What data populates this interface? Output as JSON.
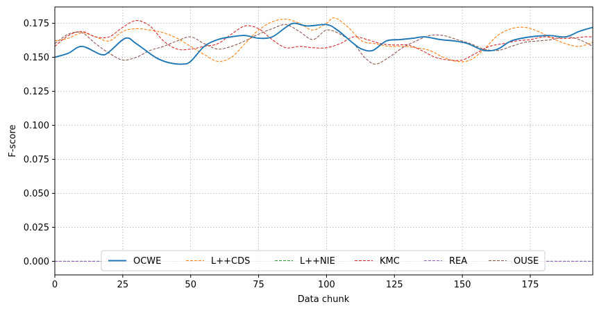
{
  "chart_data": {
    "type": "line",
    "title": "",
    "xlabel": "Data chunk",
    "ylabel": "F-score",
    "xlim": [
      0,
      198
    ],
    "ylim": [
      -0.01,
      0.187
    ],
    "xticks": [
      0,
      25,
      50,
      75,
      100,
      125,
      150,
      175
    ],
    "yticks": [
      0.0,
      0.025,
      0.05,
      0.075,
      0.1,
      0.125,
      0.15,
      0.175
    ],
    "ytick_labels": [
      "0.000",
      "0.025",
      "0.050",
      "0.075",
      "0.100",
      "0.125",
      "0.150",
      "0.175"
    ],
    "grid": true,
    "legend_position": "lower center",
    "series": [
      {
        "name": "OCWE",
        "color": "#1f77b4",
        "style": "solid",
        "x": [
          0,
          5,
          10,
          17,
          20,
          26,
          30,
          37,
          42,
          47,
          50,
          55,
          60,
          65,
          70,
          75,
          80,
          85,
          88,
          93,
          100,
          104,
          110,
          113,
          117,
          122,
          127,
          132,
          136,
          142,
          147,
          152,
          158,
          163,
          168,
          175,
          182,
          188,
          193,
          198
        ],
        "y": [
          0.15,
          0.153,
          0.158,
          0.152,
          0.154,
          0.164,
          0.16,
          0.15,
          0.146,
          0.145,
          0.147,
          0.158,
          0.163,
          0.165,
          0.166,
          0.164,
          0.165,
          0.172,
          0.175,
          0.173,
          0.174,
          0.17,
          0.16,
          0.156,
          0.155,
          0.162,
          0.163,
          0.164,
          0.165,
          0.163,
          0.162,
          0.16,
          0.155,
          0.156,
          0.162,
          0.165,
          0.166,
          0.165,
          0.169,
          0.172
        ]
      },
      {
        "name": "L++CDS",
        "color": "#ff7f0e",
        "style": "dashed",
        "x": [
          0,
          5,
          10,
          15,
          20,
          25,
          30,
          35,
          40,
          45,
          50,
          55,
          60,
          65,
          70,
          75,
          80,
          85,
          90,
          95,
          100,
          103,
          108,
          113,
          118,
          123,
          128,
          133,
          138,
          143,
          148,
          153,
          158,
          163,
          168,
          173,
          178,
          183,
          188,
          193,
          198
        ],
        "y": [
          0.162,
          0.164,
          0.168,
          0.165,
          0.162,
          0.169,
          0.171,
          0.17,
          0.168,
          0.164,
          0.158,
          0.152,
          0.147,
          0.15,
          0.16,
          0.17,
          0.176,
          0.178,
          0.175,
          0.17,
          0.175,
          0.179,
          0.172,
          0.162,
          0.16,
          0.158,
          0.158,
          0.157,
          0.155,
          0.15,
          0.147,
          0.148,
          0.156,
          0.166,
          0.171,
          0.172,
          0.169,
          0.164,
          0.16,
          0.158,
          0.161
        ]
      },
      {
        "name": "L++NIE",
        "color": "#2ca02c",
        "style": "dashed",
        "x": [
          0,
          50,
          100,
          150,
          198
        ],
        "y": [
          0.0,
          0.0,
          0.0,
          0.0,
          0.0
        ]
      },
      {
        "name": "KMC",
        "color": "#d62728",
        "style": "dashed",
        "x": [
          0,
          5,
          10,
          15,
          20,
          25,
          30,
          35,
          40,
          45,
          50,
          55,
          60,
          65,
          70,
          75,
          80,
          85,
          90,
          95,
          100,
          105,
          110,
          115,
          120,
          125,
          130,
          135,
          140,
          145,
          150,
          155,
          160,
          165,
          170,
          175,
          180,
          185,
          190,
          195,
          198
        ],
        "y": [
          0.158,
          0.166,
          0.169,
          0.165,
          0.165,
          0.172,
          0.177,
          0.173,
          0.162,
          0.156,
          0.156,
          0.158,
          0.16,
          0.167,
          0.173,
          0.171,
          0.163,
          0.157,
          0.158,
          0.157,
          0.157,
          0.16,
          0.165,
          0.163,
          0.16,
          0.159,
          0.159,
          0.155,
          0.15,
          0.148,
          0.148,
          0.153,
          0.158,
          0.16,
          0.162,
          0.163,
          0.165,
          0.164,
          0.164,
          0.165,
          0.165
        ]
      },
      {
        "name": "REA",
        "color": "#9467bd",
        "style": "dashed",
        "x": [
          0,
          50,
          100,
          150,
          198
        ],
        "y": [
          0.0,
          0.0,
          0.0,
          0.0,
          0.0
        ]
      },
      {
        "name": "OUSE",
        "color": "#8c564b",
        "style": "dashed",
        "x": [
          0,
          5,
          10,
          15,
          20,
          25,
          30,
          35,
          40,
          45,
          50,
          55,
          60,
          65,
          70,
          75,
          80,
          85,
          90,
          95,
          100,
          105,
          110,
          114,
          118,
          123,
          128,
          133,
          138,
          143,
          148,
          153,
          158,
          163,
          168,
          173,
          178,
          183,
          188,
          193,
          198
        ],
        "y": [
          0.16,
          0.167,
          0.168,
          0.16,
          0.153,
          0.148,
          0.15,
          0.155,
          0.158,
          0.162,
          0.165,
          0.16,
          0.156,
          0.158,
          0.162,
          0.167,
          0.171,
          0.174,
          0.169,
          0.163,
          0.17,
          0.167,
          0.16,
          0.15,
          0.145,
          0.15,
          0.157,
          0.162,
          0.166,
          0.166,
          0.163,
          0.16,
          0.156,
          0.155,
          0.158,
          0.161,
          0.162,
          0.163,
          0.165,
          0.163,
          0.158
        ]
      }
    ]
  }
}
